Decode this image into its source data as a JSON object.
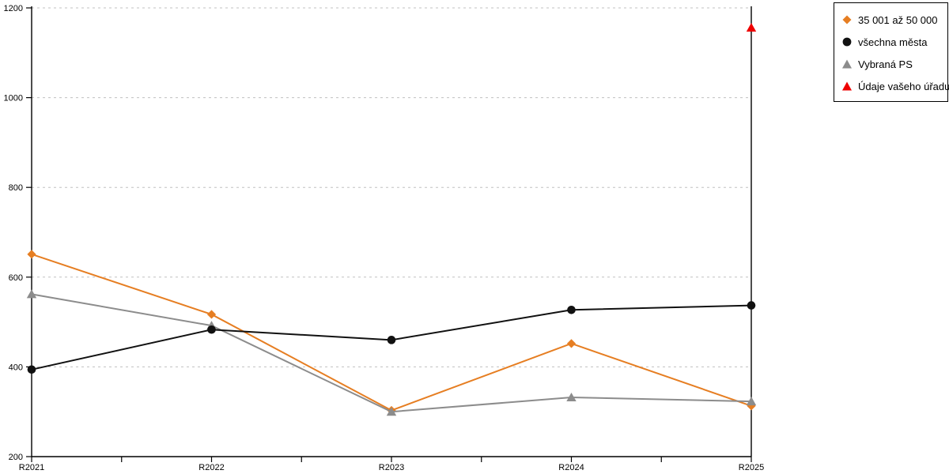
{
  "chart_data": {
    "type": "line",
    "title": "",
    "xlabel": "",
    "ylabel": "",
    "categories": [
      "R2021",
      "R2022",
      "R2023",
      "R2024",
      "R2025"
    ],
    "series": [
      {
        "name": "35 001 až 50 000",
        "marker": "diamond",
        "color": "#E67E22",
        "values": [
          651,
          517,
          303,
          452,
          313
        ]
      },
      {
        "name": "všechna města",
        "marker": "circle",
        "color": "#111111",
        "values": [
          394,
          483,
          460,
          527,
          537
        ]
      },
      {
        "name": "Vybraná PS",
        "marker": "triangle",
        "color": "#8C8C8C",
        "values": [
          562,
          492,
          300,
          332,
          323
        ]
      },
      {
        "name": "Údaje vašeho úřadu",
        "marker": "triangle",
        "color": "#EE0000",
        "values": [
          null,
          null,
          null,
          null,
          1156
        ]
      }
    ],
    "ylim": [
      200,
      1200
    ],
    "yticks": [
      200,
      400,
      600,
      800,
      1000,
      1200
    ],
    "grid": "horizontal-dashed",
    "legend_position": "top-right",
    "colors": {
      "axis": "#000000",
      "grid": "#C0C0C0",
      "background": "#FFFFFF"
    }
  }
}
